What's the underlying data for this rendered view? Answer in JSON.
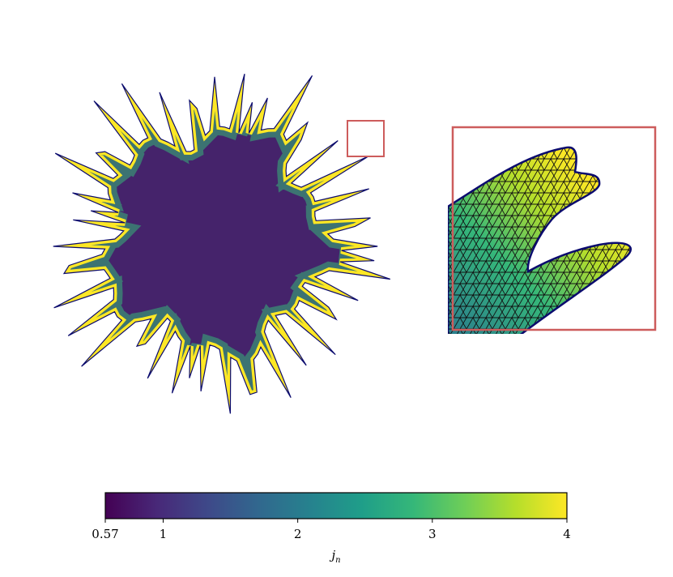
{
  "chart_data": {
    "type": "field",
    "colorbar": {
      "label": {
        "symbol": "j",
        "subscript": "n"
      },
      "lim": [
        0.57,
        4
      ],
      "ticks": [
        0.57,
        1,
        2,
        3,
        4
      ],
      "colors": [
        "#440154",
        "#482878",
        "#3e4989",
        "#31688e",
        "#26828e",
        "#1f9e89",
        "#35b779",
        "#6ece58",
        "#b5de2b",
        "#fde725"
      ]
    },
    "outline_color": "#0b0b6e",
    "zoom_box_color": "#cd5c5c"
  }
}
